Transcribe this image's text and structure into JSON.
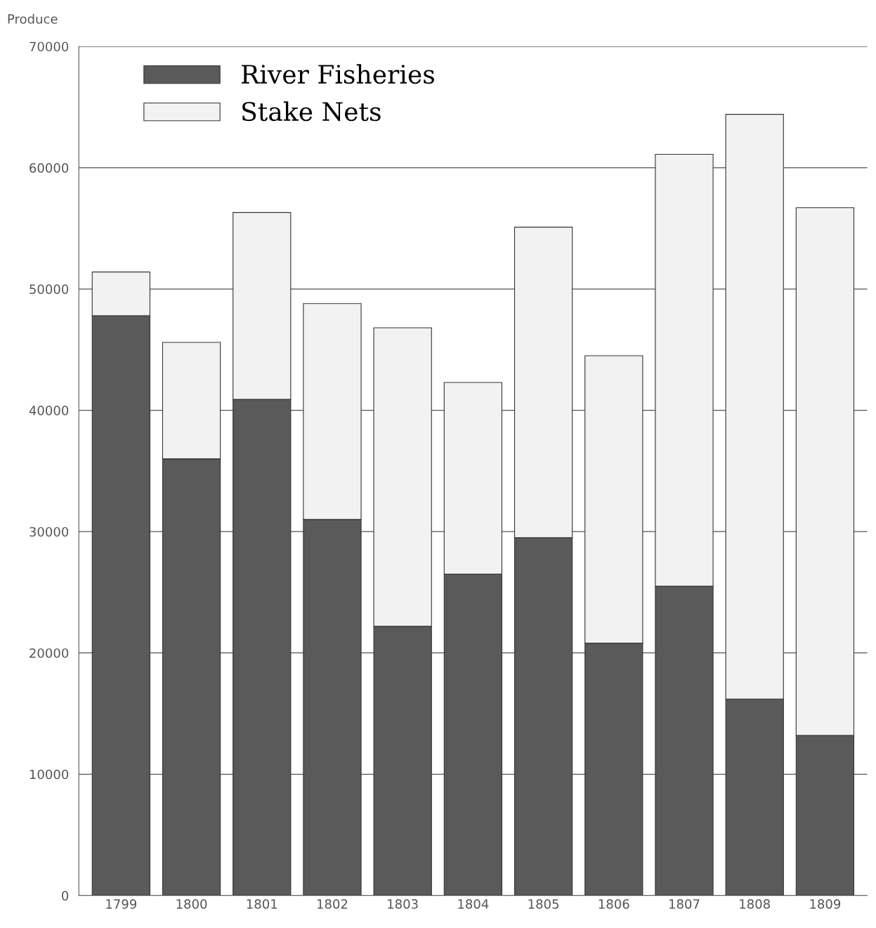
{
  "chart_data": {
    "type": "bar",
    "stacked": true,
    "ylabel": "Produce",
    "categories": [
      "1799",
      "1800",
      "1801",
      "1802",
      "1803",
      "1804",
      "1805",
      "1806",
      "1807",
      "1808",
      "1809"
    ],
    "series": [
      {
        "name": "River Fisheries",
        "color": "#5a5a5a",
        "values": [
          47800,
          36000,
          40900,
          31000,
          22200,
          26500,
          29500,
          20800,
          25500,
          16200,
          13200
        ]
      },
      {
        "name": "Stake Nets",
        "color": "#f2f2f2",
        "values": [
          3600,
          9600,
          15400,
          17800,
          24600,
          15800,
          25600,
          23700,
          35600,
          48200,
          43500
        ]
      }
    ],
    "ylim": [
      0,
      70000
    ],
    "yticks": [
      0,
      10000,
      20000,
      30000,
      40000,
      50000,
      60000,
      70000
    ],
    "grid": "y",
    "legend": "top left"
  }
}
